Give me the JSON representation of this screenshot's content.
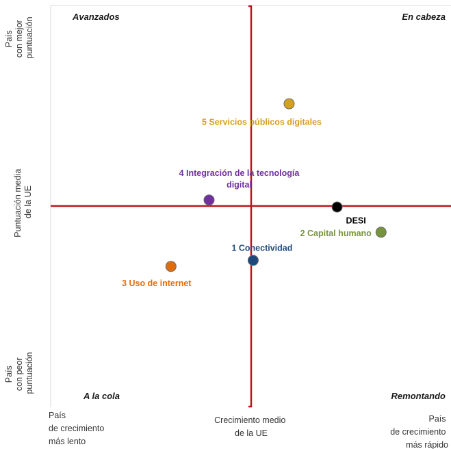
{
  "chart_data": {
    "type": "scatter",
    "title": "",
    "x_axis": {
      "left_label": [
        "País",
        "de crecimiento",
        "más lento"
      ],
      "center_label": [
        "Crecimiento medio",
        "de la UE"
      ],
      "right_label": [
        "País",
        "de crecimiento",
        "más rápido"
      ]
    },
    "y_axis": {
      "top_label": [
        "País",
        "con mejor",
        "puntuación"
      ],
      "center_label": [
        "Puntuación media",
        "de la UE"
      ],
      "bottom_label": [
        "País",
        "con peor",
        "puntuación"
      ]
    },
    "quadrants": {
      "top_left": "Avanzados",
      "top_right": "En cabeza",
      "bottom_left": "A la cola",
      "bottom_right": "Remontando"
    },
    "xlim": [
      -1,
      1
    ],
    "ylim": [
      -1,
      1
    ],
    "grid": false,
    "reference_lines": {
      "x": 0,
      "y": 0,
      "color": "#c0141c"
    },
    "points": [
      {
        "label": [
          "5 Servicios públicos digitales"
        ],
        "x": 0.19,
        "y": 0.51,
        "color": "#d4a020",
        "label_color": "#d4a020"
      },
      {
        "label": [
          "4 Integración de la tecnología",
          "digital"
        ],
        "x": -0.21,
        "y": 0.03,
        "color": "#7030a0",
        "label_color": "#7030a0"
      },
      {
        "label": [
          "DESI"
        ],
        "x": 0.43,
        "y": -0.005,
        "color": "#000000",
        "label_color": "#000000"
      },
      {
        "label": [
          "2 Capital humano"
        ],
        "x": 0.65,
        "y": -0.13,
        "color": "#77933c",
        "label_color": "#77933c"
      },
      {
        "label": [
          "1 Conectividad"
        ],
        "x": 0.01,
        "y": -0.27,
        "color": "#1f497d",
        "label_color": "#1f497d"
      },
      {
        "label": [
          "3 Uso de internet"
        ],
        "x": -0.4,
        "y": -0.3,
        "color": "#e36c0a",
        "label_color": "#e36c0a"
      }
    ]
  }
}
